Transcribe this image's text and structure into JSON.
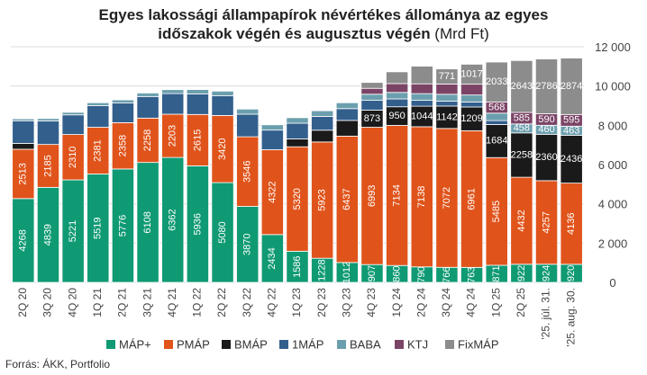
{
  "title": {
    "line1": "Egyes lakossági állampapírok névértékes állománya az egyes",
    "line2_bold": "időszakok végén és augusztus végén",
    "line2_unit": " (Mrd Ft)"
  },
  "source": "Forrás: ÁKK, Portfolio",
  "colors": {
    "MÁP+": "#0f9a74",
    "PMÁP": "#e0541b",
    "BMÁP": "#1a1a1a",
    "1MÁP": "#335f8d",
    "BABA": "#6c9fae",
    "KTJ": "#7b4466",
    "FixMÁP": "#8c8c8c"
  },
  "chart_data": {
    "type": "bar",
    "stacked": true,
    "categories": [
      "2Q 20",
      "3Q 20",
      "4Q 20",
      "1Q 21",
      "2Q 21",
      "3Q 21",
      "4Q 21",
      "1Q 22",
      "2Q 22",
      "3Q 22",
      "4Q 22",
      "1Q 23",
      "2Q 23",
      "3Q 23",
      "4Q 23",
      "1Q 24",
      "2Q 24",
      "3Q 24",
      "4Q 24",
      "1Q 25",
      "2Q 25",
      "'25. júl. 31.",
      "'25. aug. 30."
    ],
    "ylim": [
      0,
      12000
    ],
    "yticks": [
      "0",
      "2 000",
      "4 000",
      "6 000",
      "8 000",
      "10 000",
      "12 000"
    ],
    "ytick_values": [
      0,
      2000,
      4000,
      6000,
      8000,
      10000,
      12000
    ],
    "y_axis_side": "right",
    "legend_position": "bottom",
    "series": [
      {
        "name": "MÁP+",
        "values": [
          4268,
          4839,
          5221,
          5519,
          5776,
          6108,
          6362,
          5936,
          5080,
          3870,
          2434,
          1586,
          1228,
          1012,
          907,
          860,
          790,
          766,
          763,
          871,
          922,
          924,
          920
        ],
        "labels": [
          "4268",
          "4839",
          "5221",
          "5519",
          "5776",
          "6108",
          "6362",
          "5936",
          "5080",
          "3870",
          "2434",
          "1586",
          "1228",
          "1012",
          "907",
          "860",
          "790",
          "766",
          "763",
          "871",
          "922",
          "924",
          "920"
        ]
      },
      {
        "name": "PMÁP",
        "values": [
          2513,
          2185,
          2310,
          2381,
          2358,
          2258,
          2203,
          2615,
          3420,
          3546,
          4322,
          5320,
          5923,
          6437,
          6993,
          7134,
          7138,
          7072,
          6961,
          5485,
          4432,
          4257,
          4136
        ],
        "labels": [
          "2513",
          "2185",
          "2310",
          "2381",
          "2358",
          "2258",
          "2203",
          "2615",
          "3420",
          "3546",
          "4322",
          "5320",
          "5923",
          "6437",
          "6993",
          "7134",
          "7138",
          "7072",
          "6961",
          "5485",
          "4432",
          "4257",
          "4136"
        ]
      },
      {
        "name": "BMÁP",
        "values": [
          300,
          0,
          0,
          0,
          0,
          0,
          0,
          0,
          0,
          0,
          0,
          400,
          600,
          800,
          873,
          950,
          1044,
          1142,
          1209,
          1684,
          2258,
          2360,
          2436
        ],
        "labels": [
          "",
          "",
          "",
          "",
          "",
          "",
          "",
          "",
          "",
          "",
          "",
          "",
          "",
          "",
          "873",
          "950",
          "1044",
          "1142",
          "1209",
          "1684",
          "2258",
          "2360",
          "2436"
        ]
      },
      {
        "name": "1MÁP",
        "values": [
          1150,
          1200,
          1000,
          1100,
          1000,
          1100,
          1050,
          1050,
          1000,
          1150,
          1000,
          800,
          700,
          600,
          500,
          400,
          300,
          250,
          250,
          200,
          0,
          0,
          0
        ],
        "labels": [
          "",
          "",
          "",
          "",
          "",
          "",
          "",
          "",
          "",
          "",
          "",
          "",
          "",
          "",
          "",
          "",
          "",
          "",
          "",
          "",
          "",
          "",
          ""
        ]
      },
      {
        "name": "BABA",
        "values": [
          100,
          120,
          130,
          150,
          160,
          180,
          200,
          220,
          240,
          260,
          270,
          280,
          290,
          300,
          310,
          330,
          340,
          350,
          360,
          380,
          458,
          460,
          463
        ],
        "labels": [
          "",
          "",
          "",
          "",
          "",
          "",
          "",
          "",
          "",
          "",
          "",
          "",
          "",
          "",
          "",
          "",
          "",
          "",
          "",
          "",
          "458",
          "460",
          "463"
        ]
      },
      {
        "name": "KTJ",
        "values": [
          0,
          0,
          0,
          0,
          0,
          0,
          0,
          0,
          0,
          0,
          0,
          0,
          0,
          0,
          300,
          450,
          500,
          520,
          550,
          568,
          585,
          590,
          595
        ],
        "labels": [
          "",
          "",
          "",
          "",
          "",
          "",
          "",
          "",
          "",
          "",
          "",
          "",
          "",
          "",
          "",
          "",
          "",
          "",
          "",
          "568",
          "585",
          "590",
          "595"
        ]
      },
      {
        "name": "FixMÁP",
        "values": [
          0,
          0,
          0,
          0,
          0,
          0,
          0,
          0,
          0,
          0,
          0,
          0,
          0,
          0,
          300,
          600,
          900,
          771,
          1017,
          2033,
          2643,
          2786,
          2874
        ],
        "labels": [
          "",
          "",
          "",
          "",
          "",
          "",
          "",
          "",
          "",
          "",
          "",
          "",
          "",
          "",
          "",
          "",
          "",
          "771",
          "1017",
          "2033",
          "2643",
          "2786",
          "2874"
        ]
      }
    ]
  }
}
